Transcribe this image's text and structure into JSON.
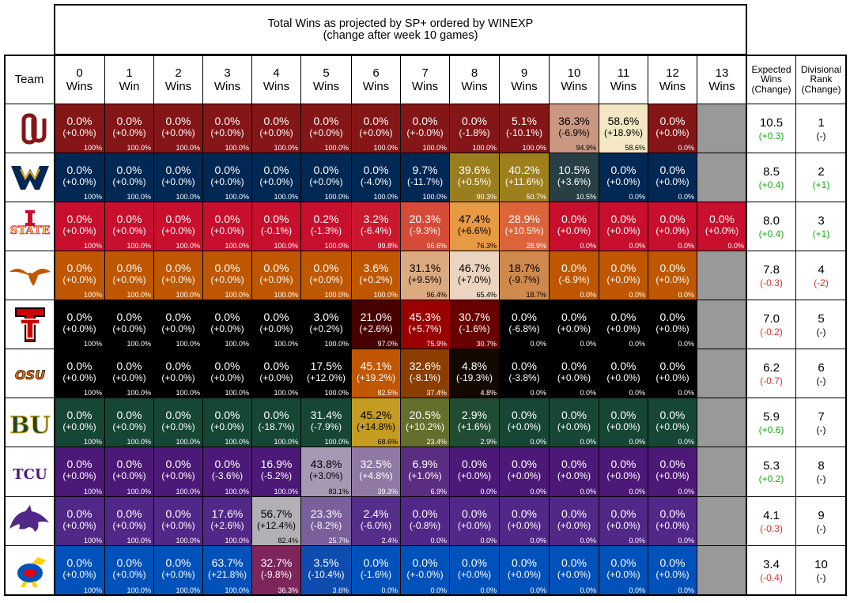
{
  "colors": {
    "header_bg": "#ffffff",
    "empty_cell": "#999999",
    "positive_change": "#1aaa1a",
    "negative_change": "#e03030",
    "neutral_change": "#000000"
  },
  "chart_data": {
    "type": "table",
    "title": "Total Wins as projected by SP+ ordered by WINEXP",
    "subtitle": "(change after week 10 games)",
    "columns": {
      "team": "Team",
      "wins": [
        [
          "0",
          "Wins"
        ],
        [
          "1",
          "Win"
        ],
        [
          "2",
          "Wins"
        ],
        [
          "3",
          "Wins"
        ],
        [
          "4",
          "Wins"
        ],
        [
          "5",
          "Wins"
        ],
        [
          "6",
          "Wins"
        ],
        [
          "7",
          "Wins"
        ],
        [
          "8",
          "Wins"
        ],
        [
          "9",
          "Wins"
        ],
        [
          "10",
          "Wins"
        ],
        [
          "11",
          "Wins"
        ],
        [
          "12",
          "Wins"
        ],
        [
          "13",
          "Wins"
        ]
      ],
      "expected": [
        "Expected",
        "Wins",
        "(Change)"
      ],
      "rank": [
        "Divisional",
        "Rank",
        "(Change)"
      ]
    },
    "teams": [
      {
        "logo": "oklahoma-logo",
        "palette": {
          "full": "#841617",
          "low": "#f7ecc8",
          "text": "#ffffff"
        },
        "cells": [
          [
            "0.0%",
            "(+0.0%)",
            "100%"
          ],
          [
            "0.0%",
            "(+0.0%)",
            "100.0%"
          ],
          [
            "0.0%",
            "(+0.0%)",
            "100.0%"
          ],
          [
            "0.0%",
            "(+0.0%)",
            "100.0%"
          ],
          [
            "0.0%",
            "(+0.0%)",
            "100.0%"
          ],
          [
            "0.0%",
            "(+0.0%)",
            "100.0%"
          ],
          [
            "0.0%",
            "(+0.0%)",
            "100.0%"
          ],
          [
            "0.0%",
            "(+-0.0%)",
            "100.0%"
          ],
          [
            "0.0%",
            "(-1.8%)",
            "100.0%"
          ],
          [
            "5.1%",
            "(-10.1%)",
            "100.0%"
          ],
          [
            "36.3%",
            "(-6.9%)",
            "94.9%"
          ],
          [
            "58.6%",
            "(+18.9%)",
            "58.6%"
          ],
          [
            "0.0%",
            "(+0.0%)",
            "0.0%"
          ],
          null
        ],
        "cum_pct": [
          100,
          100,
          100,
          100,
          100,
          100,
          100,
          100,
          100,
          100,
          94.9,
          58.6,
          0
        ],
        "expected": "10.5",
        "expected_change": "(+0.3)",
        "rank": "1",
        "rank_change": "(-)"
      },
      {
        "logo": "west-virginia-logo",
        "palette": {
          "full": "#002855",
          "low": "#eaaa00",
          "text": "#ffffff"
        },
        "cells": [
          [
            "0.0%",
            "(+0.0%)",
            "100%"
          ],
          [
            "0.0%",
            "(+0.0%)",
            "100.0%"
          ],
          [
            "0.0%",
            "(+0.0%)",
            "100.0%"
          ],
          [
            "0.0%",
            "(+0.0%)",
            "100.0%"
          ],
          [
            "0.0%",
            "(+0.0%)",
            "100.0%"
          ],
          [
            "0.0%",
            "(+0.0%)",
            "100.0%"
          ],
          [
            "0.0%",
            "(-4.0%)",
            "100.0%"
          ],
          [
            "9.7%",
            "(-11.7%)",
            "100.0%"
          ],
          [
            "39.6%",
            "(+0.5%)",
            "90.3%"
          ],
          [
            "40.2%",
            "(+11.6%)",
            "50.7%"
          ],
          [
            "10.5%",
            "(+3.6%)",
            "10.5%"
          ],
          [
            "0.0%",
            "(+0.0%)",
            "0.0%"
          ],
          [
            "0.0%",
            "(+0.0%)",
            "0.0%"
          ],
          null
        ],
        "cum_pct": [
          100,
          100,
          100,
          100,
          100,
          100,
          100,
          100,
          90.3,
          50.7,
          10.5,
          0,
          0
        ],
        "expected": "8.5",
        "expected_change": "(+0.4)",
        "rank": "2",
        "rank_change": "(+1)"
      },
      {
        "logo": "iowa-state-logo",
        "palette": {
          "full": "#c8102e",
          "low": "#f1be48",
          "text": "#ffffff"
        },
        "cells": [
          [
            "0.0%",
            "(+0.0%)",
            "100%"
          ],
          [
            "0.0%",
            "(+0.0%)",
            "100.0%"
          ],
          [
            "0.0%",
            "(+0.0%)",
            "100.0%"
          ],
          [
            "0.0%",
            "(+0.0%)",
            "100.0%"
          ],
          [
            "0.0%",
            "(-0.1%)",
            "100.0%"
          ],
          [
            "0.2%",
            "(-1.3%)",
            "100.0%"
          ],
          [
            "3.2%",
            "(-6.4%)",
            "99.8%"
          ],
          [
            "20.3%",
            "(-9.3%)",
            "96.6%"
          ],
          [
            "47.4%",
            "(+6.6%)",
            "76.3%"
          ],
          [
            "28.9%",
            "(+10.5%)",
            "28.9%"
          ],
          [
            "0.0%",
            "(+0.0%)",
            "0.0%"
          ],
          [
            "0.0%",
            "(+0.0%)",
            "0.0%"
          ],
          [
            "0.0%",
            "(+0.0%)",
            "0.0%"
          ],
          [
            "0.0%",
            "(+0.0%)",
            "0.0%"
          ]
        ],
        "cum_pct": [
          100,
          100,
          100,
          100,
          100,
          100,
          99.8,
          96.6,
          76.3,
          28.9,
          0,
          0,
          0,
          0
        ],
        "expected": "8.0",
        "expected_change": "(+0.4)",
        "rank": "3",
        "rank_change": "(+1)"
      },
      {
        "logo": "texas-logo",
        "palette": {
          "full": "#bf5700",
          "low": "#f7f7f7",
          "text": "#ffffff"
        },
        "cells": [
          [
            "0.0%",
            "(+0.0%)",
            "100%"
          ],
          [
            "0.0%",
            "(+0.0%)",
            "100.0%"
          ],
          [
            "0.0%",
            "(+0.0%)",
            "100.0%"
          ],
          [
            "0.0%",
            "(+0.0%)",
            "100.0%"
          ],
          [
            "0.0%",
            "(+0.0%)",
            "100.0%"
          ],
          [
            "0.0%",
            "(+0.0%)",
            "100.0%"
          ],
          [
            "3.6%",
            "(+0.2%)",
            "100.0%"
          ],
          [
            "31.1%",
            "(+9.5%)",
            "96.4%"
          ],
          [
            "46.7%",
            "(+7.0%)",
            "65.4%"
          ],
          [
            "18.7%",
            "(-9.7%)",
            "18.7%"
          ],
          [
            "0.0%",
            "(-6.9%)",
            "0.0%"
          ],
          [
            "0.0%",
            "(+0.0%)",
            "0.0%"
          ],
          [
            "0.0%",
            "(+0.0%)",
            "0.0%"
          ],
          null
        ],
        "cum_pct": [
          100,
          100,
          100,
          100,
          100,
          100,
          100,
          96.4,
          65.4,
          18.7,
          0,
          0,
          0
        ],
        "expected": "7.8",
        "expected_change": "(-0.3)",
        "rank": "4",
        "rank_change": "(-2)"
      },
      {
        "logo": "texas-tech-logo",
        "palette": {
          "full": "#000000",
          "low": "#cc0000",
          "text": "#ffffff"
        },
        "cells": [
          [
            "0.0%",
            "(+0.0%)",
            "100%"
          ],
          [
            "0.0%",
            "(+0.0%)",
            "100.0%"
          ],
          [
            "0.0%",
            "(+0.0%)",
            "100.0%"
          ],
          [
            "0.0%",
            "(+0.0%)",
            "100.0%"
          ],
          [
            "0.0%",
            "(+0.0%)",
            "100.0%"
          ],
          [
            "3.0%",
            "(+0.2%)",
            "100.0%"
          ],
          [
            "21.0%",
            "(+2.6%)",
            "97.0%"
          ],
          [
            "45.3%",
            "(+5.7%)",
            "75.9%"
          ],
          [
            "30.7%",
            "(-1.6%)",
            "30.7%"
          ],
          [
            "0.0%",
            "(-6.8%)",
            "0.0%"
          ],
          [
            "0.0%",
            "(+0.0%)",
            "0.0%"
          ],
          [
            "0.0%",
            "(+0.0%)",
            "0.0%"
          ],
          [
            "0.0%",
            "(+0.0%)",
            "0.0%"
          ],
          null
        ],
        "cum_pct": [
          100,
          100,
          100,
          100,
          100,
          100,
          97,
          75.9,
          30.7,
          0,
          0,
          0,
          0
        ],
        "expected": "7.0",
        "expected_change": "(-0.2)",
        "rank": "5",
        "rank_change": "(-)"
      },
      {
        "logo": "oklahoma-state-logo",
        "palette": {
          "full": "#000000",
          "low": "#ff7300",
          "text": "#ffffff"
        },
        "cells": [
          [
            "0.0%",
            "(+0.0%)",
            "100%"
          ],
          [
            "0.0%",
            "(+0.0%)",
            "100.0%"
          ],
          [
            "0.0%",
            "(+0.0%)",
            "100.0%"
          ],
          [
            "0.0%",
            "(+0.0%)",
            "100.0%"
          ],
          [
            "0.0%",
            "(+0.0%)",
            "100.0%"
          ],
          [
            "17.5%",
            "(+12.0%)",
            "100.0%"
          ],
          [
            "45.1%",
            "(+19.2%)",
            "82.5%"
          ],
          [
            "32.6%",
            "(-8.1%)",
            "37.4%"
          ],
          [
            "4.8%",
            "(-19.3%)",
            "4.8%"
          ],
          [
            "0.0%",
            "(-3.8%)",
            "0.0%"
          ],
          [
            "0.0%",
            "(+0.0%)",
            "0.0%"
          ],
          [
            "0.0%",
            "(+0.0%)",
            "0.0%"
          ],
          [
            "0.0%",
            "(+0.0%)",
            "0.0%"
          ],
          null
        ],
        "cum_pct": [
          100,
          100,
          100,
          100,
          100,
          100,
          82.5,
          37.4,
          4.8,
          0,
          0,
          0,
          0
        ],
        "expected": "6.2",
        "expected_change": "(-0.7)",
        "rank": "6",
        "rank_change": "(-)"
      },
      {
        "logo": "baylor-logo",
        "palette": {
          "full": "#154734",
          "low": "#ffb81c",
          "text": "#ffffff"
        },
        "cells": [
          [
            "0.0%",
            "(+0.0%)",
            "100%"
          ],
          [
            "0.0%",
            "(+0.0%)",
            "100.0%"
          ],
          [
            "0.0%",
            "(+0.0%)",
            "100.0%"
          ],
          [
            "0.0%",
            "(+0.0%)",
            "100.0%"
          ],
          [
            "0.0%",
            "(-18.7%)",
            "100.0%"
          ],
          [
            "31.4%",
            "(-7.9%)",
            "100.0%"
          ],
          [
            "45.2%",
            "(+14.8%)",
            "68.6%"
          ],
          [
            "20.5%",
            "(+10.2%)",
            "23.4%"
          ],
          [
            "2.9%",
            "(+1.6%)",
            "2.9%"
          ],
          [
            "0.0%",
            "(+0.0%)",
            "0.0%"
          ],
          [
            "0.0%",
            "(+0.0%)",
            "0.0%"
          ],
          [
            "0.0%",
            "(+0.0%)",
            "0.0%"
          ],
          [
            "0.0%",
            "(+0.0%)",
            "0.0%"
          ],
          null
        ],
        "cum_pct": [
          100,
          100,
          100,
          100,
          100,
          100,
          68.6,
          23.4,
          2.9,
          0,
          0,
          0,
          0
        ],
        "expected": "5.9",
        "expected_change": "(+0.6)",
        "rank": "7",
        "rank_change": "(-)"
      },
      {
        "logo": "tcu-logo",
        "palette": {
          "full": "#4d1979",
          "low": "#c8c8c8",
          "text": "#ffffff"
        },
        "cells": [
          [
            "0.0%",
            "(+0.0%)",
            "100%"
          ],
          [
            "0.0%",
            "(+0.0%)",
            "100.0%"
          ],
          [
            "0.0%",
            "(+0.0%)",
            "100.0%"
          ],
          [
            "0.0%",
            "(-3.6%)",
            "100.0%"
          ],
          [
            "16.9%",
            "(-5.2%)",
            "100.0%"
          ],
          [
            "43.8%",
            "(+3.0%)",
            "83.1%"
          ],
          [
            "32.5%",
            "(+4.8%)",
            "39.3%"
          ],
          [
            "6.9%",
            "(+1.0%)",
            "6.9%"
          ],
          [
            "0.0%",
            "(+0.0%)",
            "0.0%"
          ],
          [
            "0.0%",
            "(+0.0%)",
            "0.0%"
          ],
          [
            "0.0%",
            "(+0.0%)",
            "0.0%"
          ],
          [
            "0.0%",
            "(+0.0%)",
            "0.0%"
          ],
          [
            "0.0%",
            "(+0.0%)",
            "0.0%"
          ],
          null
        ],
        "cum_pct": [
          100,
          100,
          100,
          100,
          100,
          83.1,
          39.3,
          6.9,
          0,
          0,
          0,
          0,
          0
        ],
        "expected": "5.3",
        "expected_change": "(+0.2)",
        "rank": "8",
        "rank_change": "(-)"
      },
      {
        "logo": "kansas-state-logo",
        "palette": {
          "full": "#512888",
          "low": "#b8b8b8",
          "text": "#ffffff"
        },
        "cells": [
          [
            "0.0%",
            "(+0.0%)",
            "100%"
          ],
          [
            "0.0%",
            "(+0.0%)",
            "100.0%"
          ],
          [
            "0.0%",
            "(+0.0%)",
            "100.0%"
          ],
          [
            "17.6%",
            "(+2.6%)",
            "100.0%"
          ],
          [
            "56.7%",
            "(+12.4%)",
            "82.4%"
          ],
          [
            "23.3%",
            "(-8.2%)",
            "25.7%"
          ],
          [
            "2.4%",
            "(-6.0%)",
            "2.4%"
          ],
          [
            "0.0%",
            "(-0.8%)",
            "0.0%"
          ],
          [
            "0.0%",
            "(+0.0%)",
            "0.0%"
          ],
          [
            "0.0%",
            "(+0.0%)",
            "0.0%"
          ],
          [
            "0.0%",
            "(+0.0%)",
            "0.0%"
          ],
          [
            "0.0%",
            "(+0.0%)",
            "0.0%"
          ],
          [
            "0.0%",
            "(+0.0%)",
            "0.0%"
          ],
          null
        ],
        "cum_pct": [
          100,
          100,
          100,
          100,
          82.4,
          25.7,
          2.4,
          0,
          0,
          0,
          0,
          0,
          0
        ],
        "expected": "4.1",
        "expected_change": "(-0.3)",
        "rank": "9",
        "rank_change": "(-)"
      },
      {
        "logo": "kansas-logo",
        "palette": {
          "full": "#0051ba",
          "low": "#e8000d",
          "text": "#ffffff"
        },
        "cells": [
          [
            "0.0%",
            "(+0.0%)",
            "100%"
          ],
          [
            "0.0%",
            "(+0.0%)",
            "100.0%"
          ],
          [
            "0.0%",
            "(+0.0%)",
            "100.0%"
          ],
          [
            "63.7%",
            "(+21.8%)",
            "100.0%"
          ],
          [
            "32.7%",
            "(-9.8%)",
            "36.3%"
          ],
          [
            "3.5%",
            "(-10.4%)",
            "3.6%"
          ],
          [
            "0.0%",
            "(-1.6%)",
            "0.0%"
          ],
          [
            "0.0%",
            "(+-0.0%)",
            "0.0%"
          ],
          [
            "0.0%",
            "(+0.0%)",
            "0.0%"
          ],
          [
            "0.0%",
            "(+0.0%)",
            "0.0%"
          ],
          [
            "0.0%",
            "(+0.0%)",
            "0.0%"
          ],
          [
            "0.0%",
            "(+0.0%)",
            "0.0%"
          ],
          [
            "0.0%",
            "(+0.0%)",
            "0.0%"
          ],
          null
        ],
        "cum_pct": [
          100,
          100,
          100,
          100,
          36.3,
          3.6,
          0,
          0,
          0,
          0,
          0,
          0,
          0
        ],
        "expected": "3.4",
        "expected_change": "(-0.4)",
        "rank": "10",
        "rank_change": "(-)"
      }
    ]
  }
}
